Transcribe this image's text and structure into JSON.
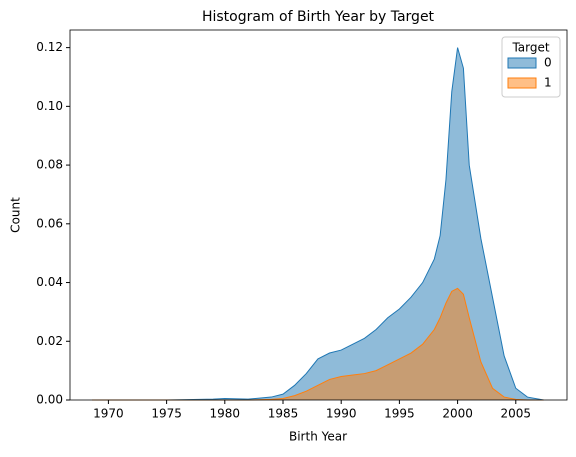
{
  "chart_data": {
    "type": "area",
    "title": "Histogram of Birth Year by Target",
    "x_label": "Birth Year",
    "y_label": "Count",
    "x": [
      1968.6,
      1975,
      1979,
      1980,
      1982,
      1984,
      1985,
      1986,
      1987,
      1988,
      1989,
      1990,
      1991,
      1992,
      1993,
      1994,
      1995,
      1996,
      1997,
      1998,
      1998.5,
      1999,
      1999.5,
      2000,
      2000.5,
      2001,
      2002,
      2003,
      2004,
      2005,
      2006,
      2007.4
    ],
    "series": [
      {
        "name": "0",
        "color": "#1f77b4",
        "values": [
          0,
          0,
          0.0003,
          0.0005,
          0.0003,
          0.001,
          0.002,
          0.005,
          0.009,
          0.014,
          0.016,
          0.017,
          0.019,
          0.021,
          0.024,
          0.028,
          0.031,
          0.035,
          0.04,
          0.048,
          0.056,
          0.075,
          0.105,
          0.12,
          0.113,
          0.08,
          0.055,
          0.035,
          0.015,
          0.004,
          0.001,
          0
        ]
      },
      {
        "name": "1",
        "color": "#ff7f0e",
        "values": [
          0,
          0,
          0,
          0,
          0,
          0.0002,
          0.0005,
          0.0015,
          0.003,
          0.005,
          0.007,
          0.008,
          0.0085,
          0.009,
          0.01,
          0.012,
          0.014,
          0.016,
          0.019,
          0.024,
          0.028,
          0.033,
          0.037,
          0.038,
          0.036,
          0.028,
          0.013,
          0.004,
          0.001,
          0.0002,
          0,
          0
        ]
      }
    ],
    "legend_title": "Target",
    "legend": "upper right",
    "xlim": [
      1966.7,
      2009.4
    ],
    "xticks": [
      1970,
      1975,
      1980,
      1985,
      1990,
      1995,
      2000,
      2005
    ],
    "ylim": [
      0,
      0.126
    ],
    "yticks": [
      {
        "value": 0,
        "label": "0.00"
      },
      {
        "value": 0.02,
        "label": "0.02"
      },
      {
        "value": 0.04,
        "label": "0.04"
      },
      {
        "value": 0.06,
        "label": "0.06"
      },
      {
        "value": 0.08,
        "label": "0.08"
      },
      {
        "value": 0.1,
        "label": "0.10"
      },
      {
        "value": 0.12,
        "label": "0.12"
      }
    ]
  }
}
